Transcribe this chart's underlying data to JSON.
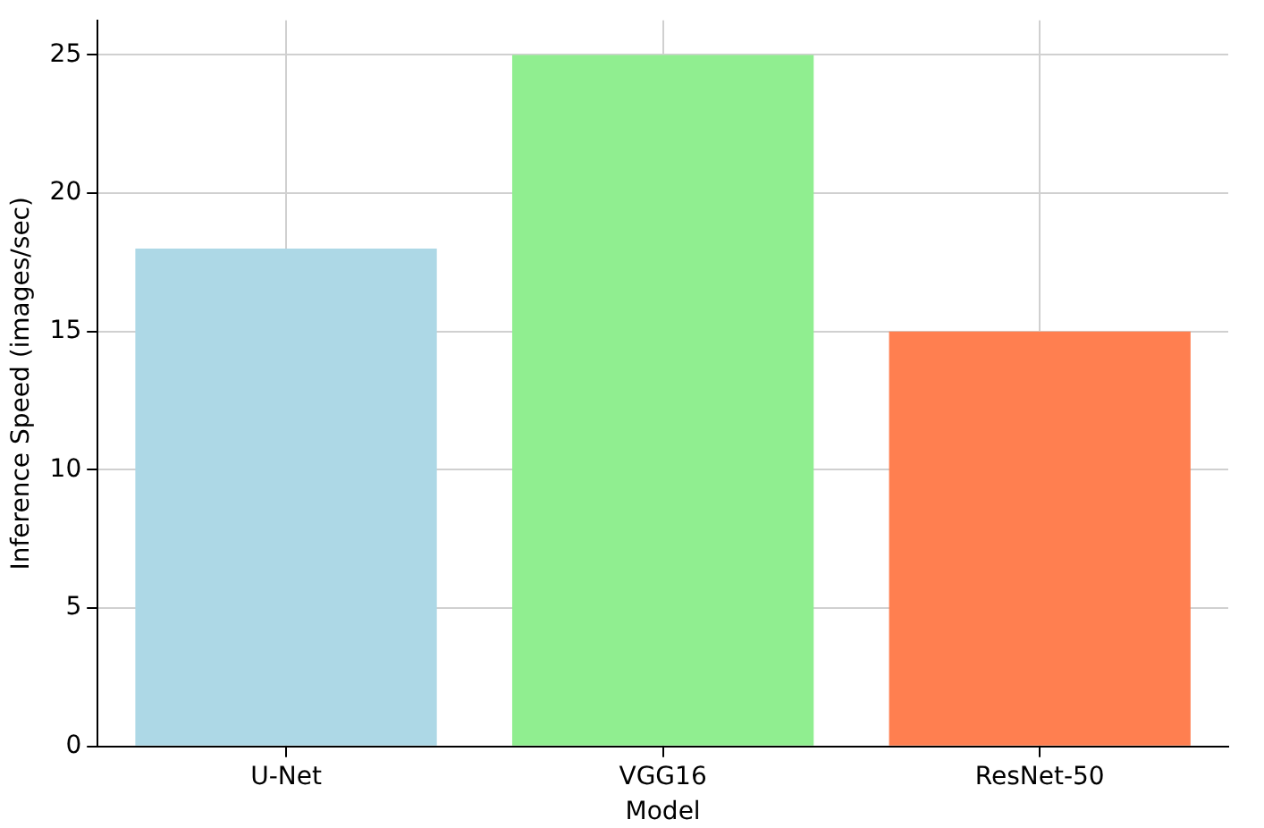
{
  "chart_data": {
    "type": "bar",
    "xlabel": "Model",
    "ylabel": "Inference Speed (images/sec)",
    "categories": [
      "U-Net",
      "VGG16",
      "ResNet-50"
    ],
    "values": [
      18,
      25,
      15
    ],
    "colors": [
      "#add8e6",
      "#90ee90",
      "#ff7f50"
    ],
    "ylim": [
      0,
      26.25
    ],
    "yticks": [
      0,
      5,
      10,
      15,
      20,
      25
    ],
    "grid": true,
    "legend": false
  }
}
